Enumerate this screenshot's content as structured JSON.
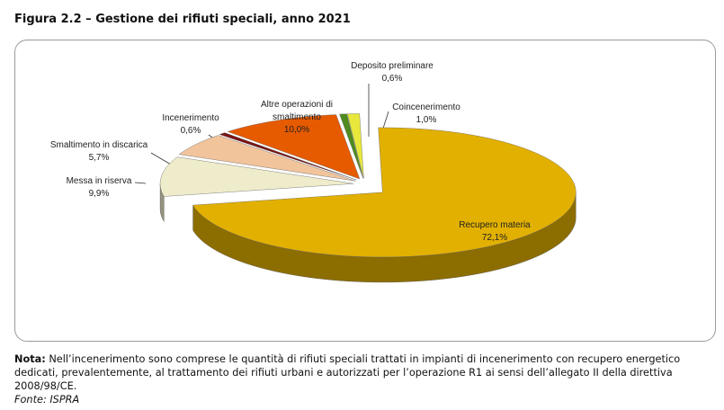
{
  "title": "Figura 2.2 – Gestione dei rifiuti speciali, anno 2021",
  "chart_data": {
    "type": "pie",
    "categories": [
      "Deposito preliminare",
      "Coincenerimento",
      "Recupero materia",
      "Messa in riserva",
      "Smaltimento in discarica",
      "Incenerimento",
      "Altre operazioni di smaltimento"
    ],
    "values": [
      0.6,
      1.0,
      72.1,
      9.9,
      5.7,
      0.6,
      10.0
    ],
    "value_labels": [
      "0,6%",
      "1,0%",
      "72,1%",
      "9,9%",
      "5,7%",
      "0,6%",
      "10,0%"
    ],
    "colors": [
      "#4f8a1f",
      "#e8e83c",
      "#e2b000",
      "#efeccb",
      "#f2c49c",
      "#7a1212",
      "#e65a00"
    ]
  },
  "note": {
    "label": "Nota:",
    "text": "Nell’incenerimento sono comprese le quantità di rifiuti speciali trattati in impianti di incenerimento con recupero energetico dedicati, prevalentemente, al trattamento dei rifiuti urbani e autorizzati per l’operazione R1 ai sensi dell’allegato II della direttiva 2008/98/CE.",
    "source": "Fonte: ISPRA"
  }
}
